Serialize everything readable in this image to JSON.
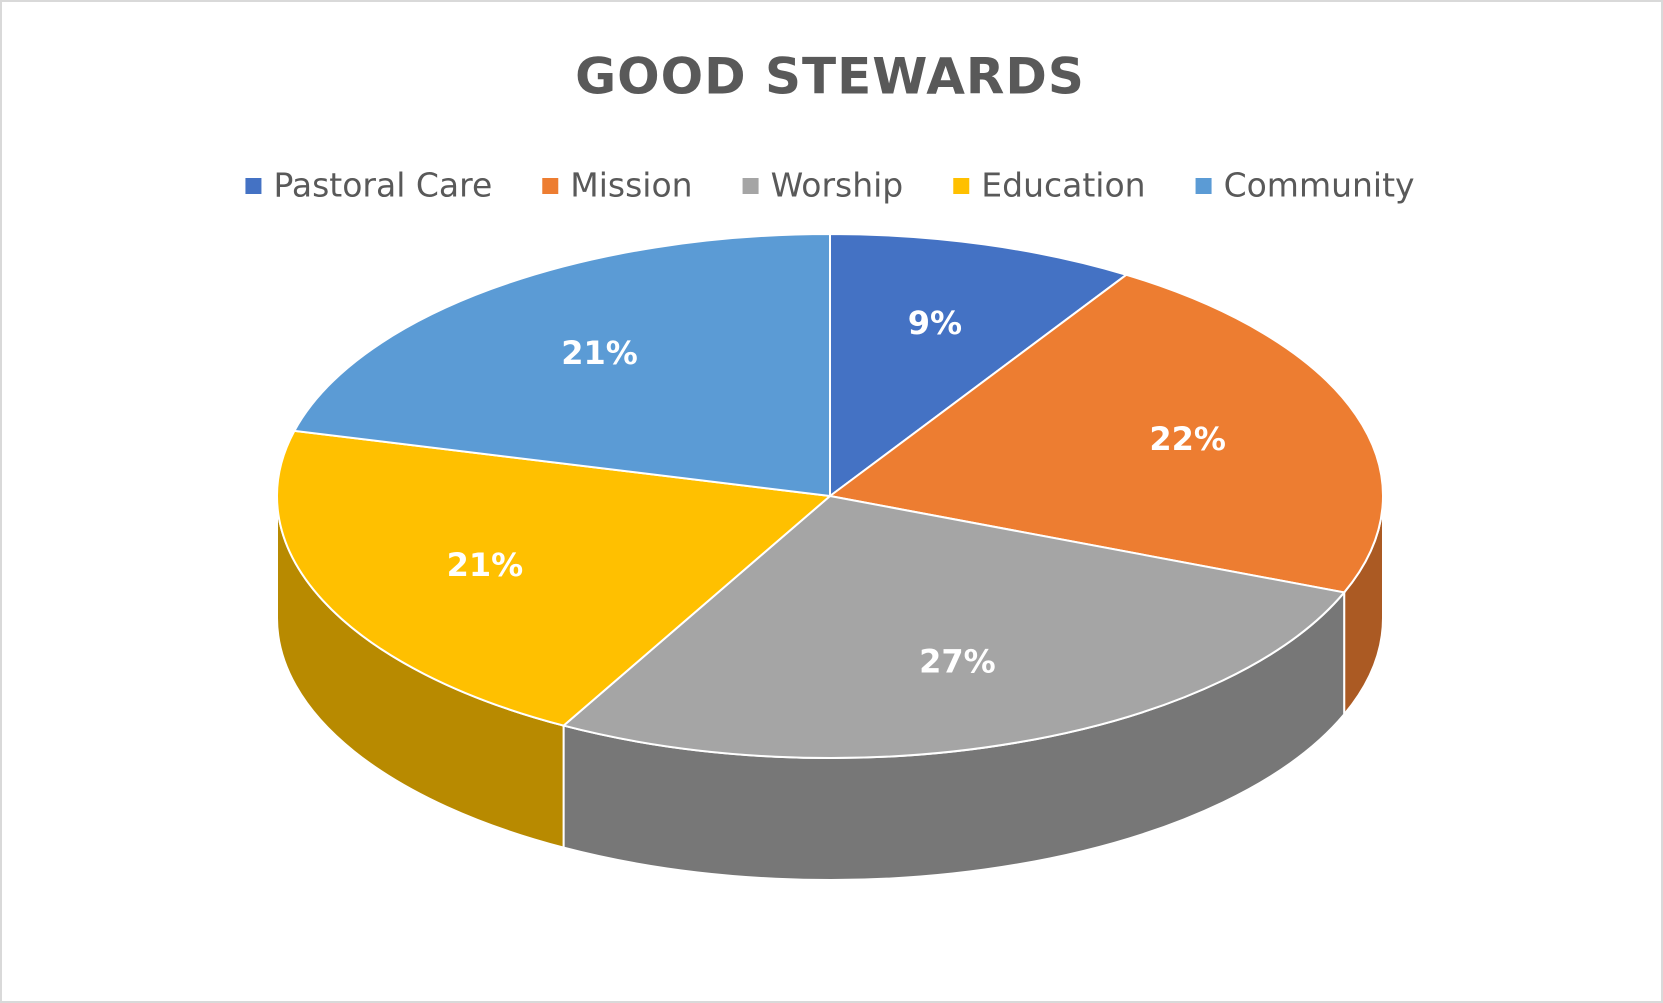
{
  "chart_data": {
    "type": "pie",
    "title": "GOOD STEWARDS",
    "categories": [
      "Pastoral Care",
      "Mission",
      "Worship",
      "Education",
      "Community"
    ],
    "values": [
      9,
      22,
      27,
      21,
      21
    ],
    "value_labels": [
      "9%",
      "22%",
      "27%",
      "21%",
      "21%"
    ],
    "colors": [
      "#4472c4",
      "#ed7d31",
      "#a5a5a5",
      "#ffc000",
      "#5b9bd5"
    ],
    "legend": "top"
  }
}
